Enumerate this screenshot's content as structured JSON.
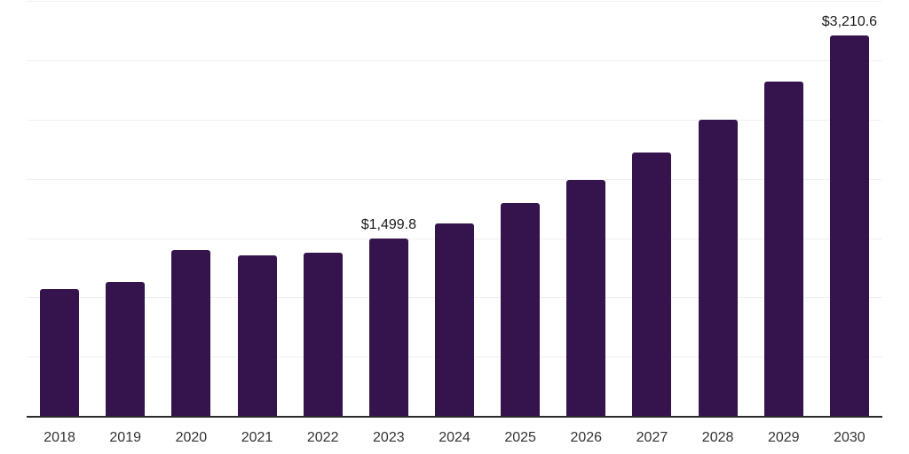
{
  "chart_data": {
    "type": "bar",
    "title": "",
    "xlabel": "",
    "ylabel": "",
    "categories": [
      "2018",
      "2019",
      "2020",
      "2021",
      "2022",
      "2023",
      "2024",
      "2025",
      "2026",
      "2027",
      "2028",
      "2029",
      "2030"
    ],
    "values": [
      1070,
      1130,
      1397,
      1353,
      1380,
      1499.8,
      1626,
      1798,
      1990,
      2222,
      2500,
      2822,
      3210.6
    ],
    "data_labels": [
      {
        "index": 5,
        "text": "$1,499.8"
      },
      {
        "index": 12,
        "text": "$3,210.6"
      }
    ],
    "ylim": [
      0,
      3500
    ],
    "gridline_step": 500,
    "grid": true,
    "legend": false,
    "y_tick_labels_visible": false,
    "bar_color": "#35134d",
    "gridline_color": "#f0f0f0",
    "axis_line_color": "#2b2b2b",
    "tick_label_color": "#333333",
    "data_label_color": "#1a1a1a",
    "background_color": "#ffffff"
  }
}
